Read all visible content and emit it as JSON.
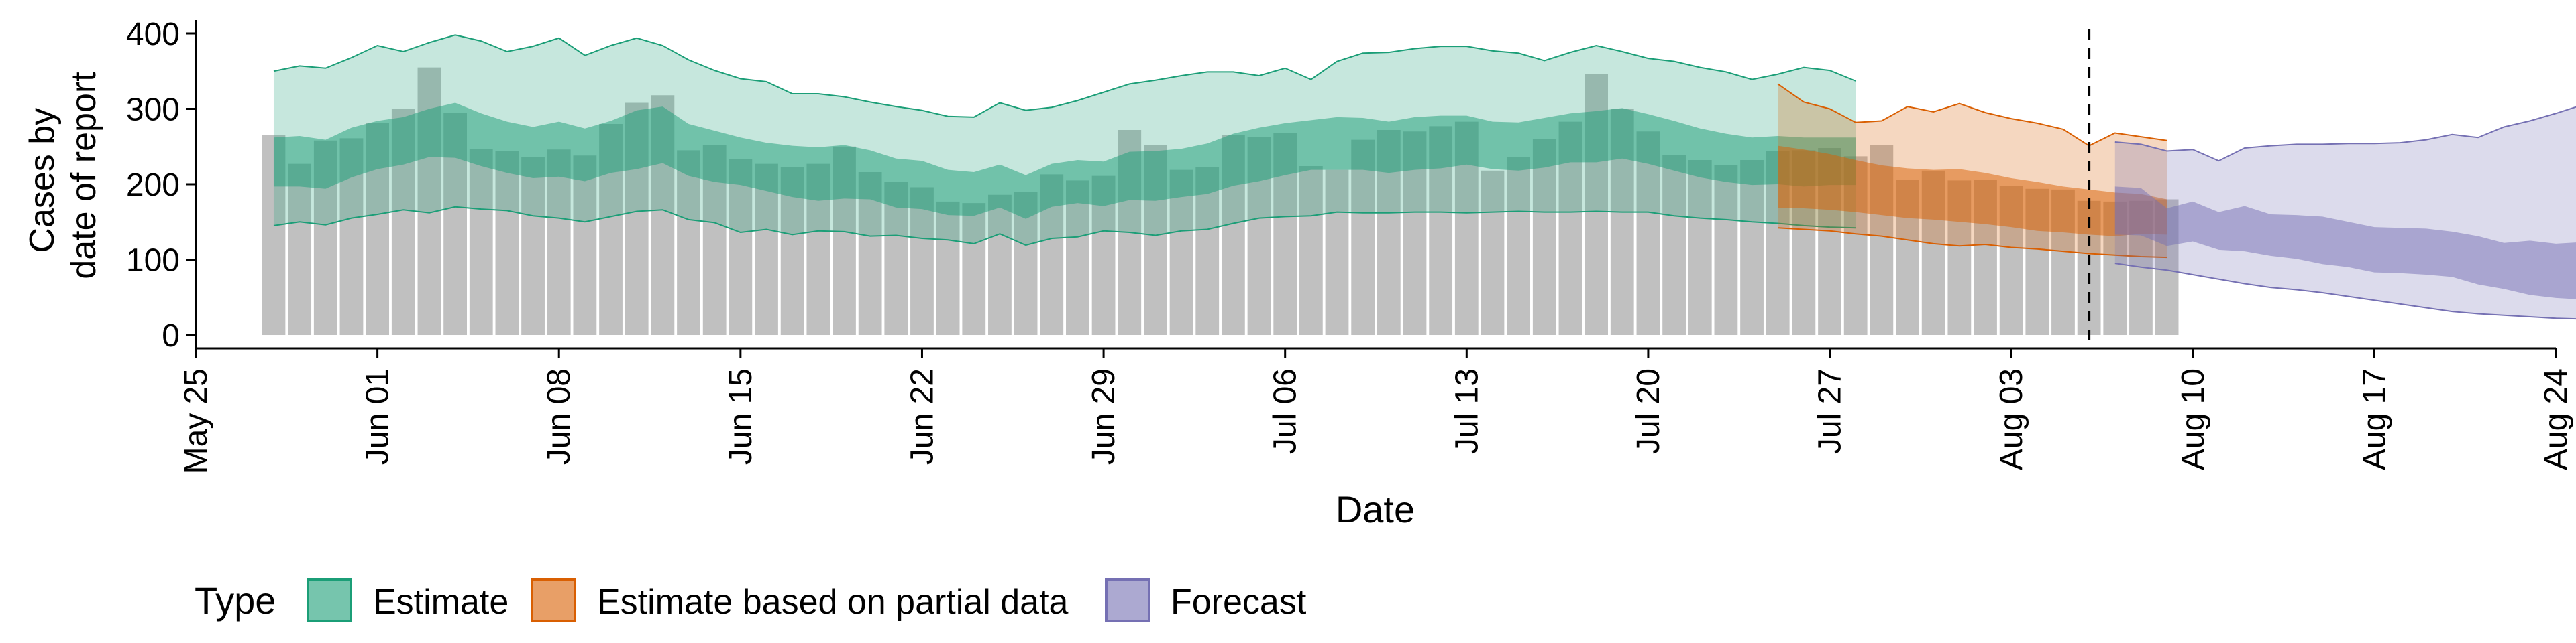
{
  "chart_data": {
    "type": "bar",
    "xlabel": "Date",
    "ylabel_lines": [
      "Cases by",
      "date of report"
    ],
    "ylim": [
      0,
      420
    ],
    "yticks": [
      0,
      100,
      200,
      300,
      400
    ],
    "x_range": [
      "2020-05-25",
      "2020-08-24"
    ],
    "x_tick_labels": [
      "May 25",
      "Jun 01",
      "Jun 08",
      "Jun 15",
      "Jun 22",
      "Jun 29",
      "Jul 06",
      "Jul 13",
      "Jul 20",
      "Jul 27",
      "Aug 03",
      "Aug 10",
      "Aug 17",
      "Aug 24"
    ],
    "x_tick_dates": [
      "2020-05-25",
      "2020-06-01",
      "2020-06-08",
      "2020-06-15",
      "2020-06-22",
      "2020-06-29",
      "2020-07-06",
      "2020-07-13",
      "2020-07-20",
      "2020-07-27",
      "2020-08-03",
      "2020-08-10",
      "2020-08-17",
      "2020-08-24"
    ],
    "vline_date": "2020-08-06",
    "bars": {
      "start_date": "2020-05-28",
      "color": "#bdbdbd",
      "values": [
        265,
        227,
        258,
        261,
        281,
        300,
        355,
        295,
        247,
        244,
        236,
        246,
        238,
        280,
        308,
        318,
        245,
        252,
        233,
        227,
        223,
        227,
        250,
        216,
        203,
        196,
        177,
        175,
        186,
        190,
        213,
        205,
        211,
        272,
        252,
        219,
        223,
        265,
        263,
        268,
        224,
        219,
        259,
        272,
        270,
        277,
        283,
        218,
        236,
        260,
        283,
        346,
        300,
        270,
        239,
        232,
        225,
        232,
        244,
        245,
        248,
        237,
        252,
        206,
        218,
        205,
        206,
        198,
        194,
        193,
        178,
        177,
        178,
        180
      ]
    },
    "series": [
      {
        "name": "Estimate",
        "color": "#1b9e77",
        "start_date": "2020-05-28",
        "outer_lower": [
          145,
          150,
          146,
          155,
          160,
          166,
          162,
          170,
          167,
          165,
          158,
          155,
          150,
          157,
          164,
          166,
          153,
          149,
          136,
          140,
          133,
          138,
          137,
          131,
          132,
          128,
          126,
          121,
          134,
          119,
          128,
          130,
          138,
          136,
          132,
          138,
          140,
          148,
          155,
          157,
          158,
          163,
          162,
          162,
          163,
          163,
          162,
          163,
          164,
          163,
          163,
          164,
          163,
          163,
          158,
          155,
          153,
          150,
          148,
          145,
          143,
          142
        ],
        "inner_lower": [
          197,
          197,
          194,
          209,
          220,
          226,
          236,
          235,
          224,
          215,
          208,
          210,
          204,
          215,
          220,
          228,
          211,
          203,
          199,
          191,
          183,
          178,
          181,
          180,
          169,
          167,
          159,
          158,
          169,
          154,
          170,
          175,
          171,
          179,
          178,
          183,
          187,
          198,
          204,
          212,
          219,
          219,
          219,
          215,
          219,
          221,
          226,
          220,
          218,
          222,
          229,
          229,
          234,
          227,
          218,
          209,
          203,
          199,
          200,
          197,
          199,
          199
        ],
        "inner_upper": [
          262,
          264,
          259,
          275,
          284,
          289,
          300,
          308,
          294,
          283,
          276,
          283,
          274,
          284,
          298,
          303,
          280,
          271,
          262,
          255,
          251,
          249,
          252,
          245,
          234,
          231,
          219,
          216,
          226,
          212,
          227,
          232,
          230,
          243,
          244,
          247,
          254,
          267,
          275,
          281,
          285,
          289,
          288,
          283,
          289,
          291,
          291,
          283,
          282,
          288,
          294,
          297,
          301,
          293,
          284,
          274,
          267,
          262,
          264,
          262,
          262,
          262
        ],
        "outer_upper": [
          350,
          357,
          354,
          368,
          384,
          376,
          388,
          398,
          390,
          376,
          383,
          394,
          371,
          384,
          394,
          384,
          365,
          351,
          340,
          336,
          320,
          320,
          316,
          309,
          303,
          298,
          290,
          289,
          308,
          298,
          302,
          311,
          322,
          333,
          338,
          344,
          349,
          349,
          344,
          354,
          339,
          363,
          374,
          375,
          380,
          383,
          383,
          377,
          374,
          364,
          375,
          384,
          376,
          367,
          363,
          355,
          349,
          339,
          346,
          355,
          351,
          337
        ]
      },
      {
        "name": "Estimate based on partial data",
        "color": "#d95f02",
        "start_date": "2020-07-25",
        "outer_lower": [
          142,
          140,
          138,
          134,
          131,
          126,
          121,
          118,
          120,
          116,
          114,
          111,
          108,
          106,
          104,
          103
        ],
        "inner_lower": [
          168,
          168,
          166,
          163,
          159,
          155,
          153,
          150,
          147,
          143,
          138,
          136,
          133,
          131,
          134,
          133
        ],
        "inner_upper": [
          251,
          246,
          240,
          232,
          225,
          221,
          219,
          220,
          215,
          208,
          203,
          197,
          193,
          189,
          187,
          180
        ],
        "outer_upper": [
          333,
          309,
          300,
          282,
          284,
          303,
          296,
          307,
          295,
          287,
          281,
          273,
          251,
          268,
          263,
          258
        ]
      },
      {
        "name": "Forecast",
        "color": "#7570b3",
        "start_date": "2020-08-07",
        "outer_lower": [
          95,
          90,
          86,
          80,
          74,
          68,
          63,
          60,
          56,
          51,
          46,
          41,
          36,
          31,
          28,
          26,
          24,
          22,
          21
        ],
        "inner_lower": [
          133,
          132,
          118,
          124,
          113,
          111,
          105,
          101,
          94,
          90,
          83,
          82,
          80,
          77,
          67,
          61,
          53,
          49,
          47
        ],
        "inner_upper": [
          197,
          195,
          168,
          177,
          163,
          171,
          160,
          159,
          157,
          150,
          143,
          142,
          141,
          137,
          131,
          122,
          125,
          121,
          123
        ],
        "outer_upper": [
          256,
          253,
          244,
          246,
          231,
          248,
          251,
          253,
          253,
          254,
          254,
          255,
          259,
          266,
          262,
          276,
          284,
          294,
          305
        ]
      }
    ],
    "legend": {
      "title": "Type",
      "position": "bottom"
    }
  }
}
